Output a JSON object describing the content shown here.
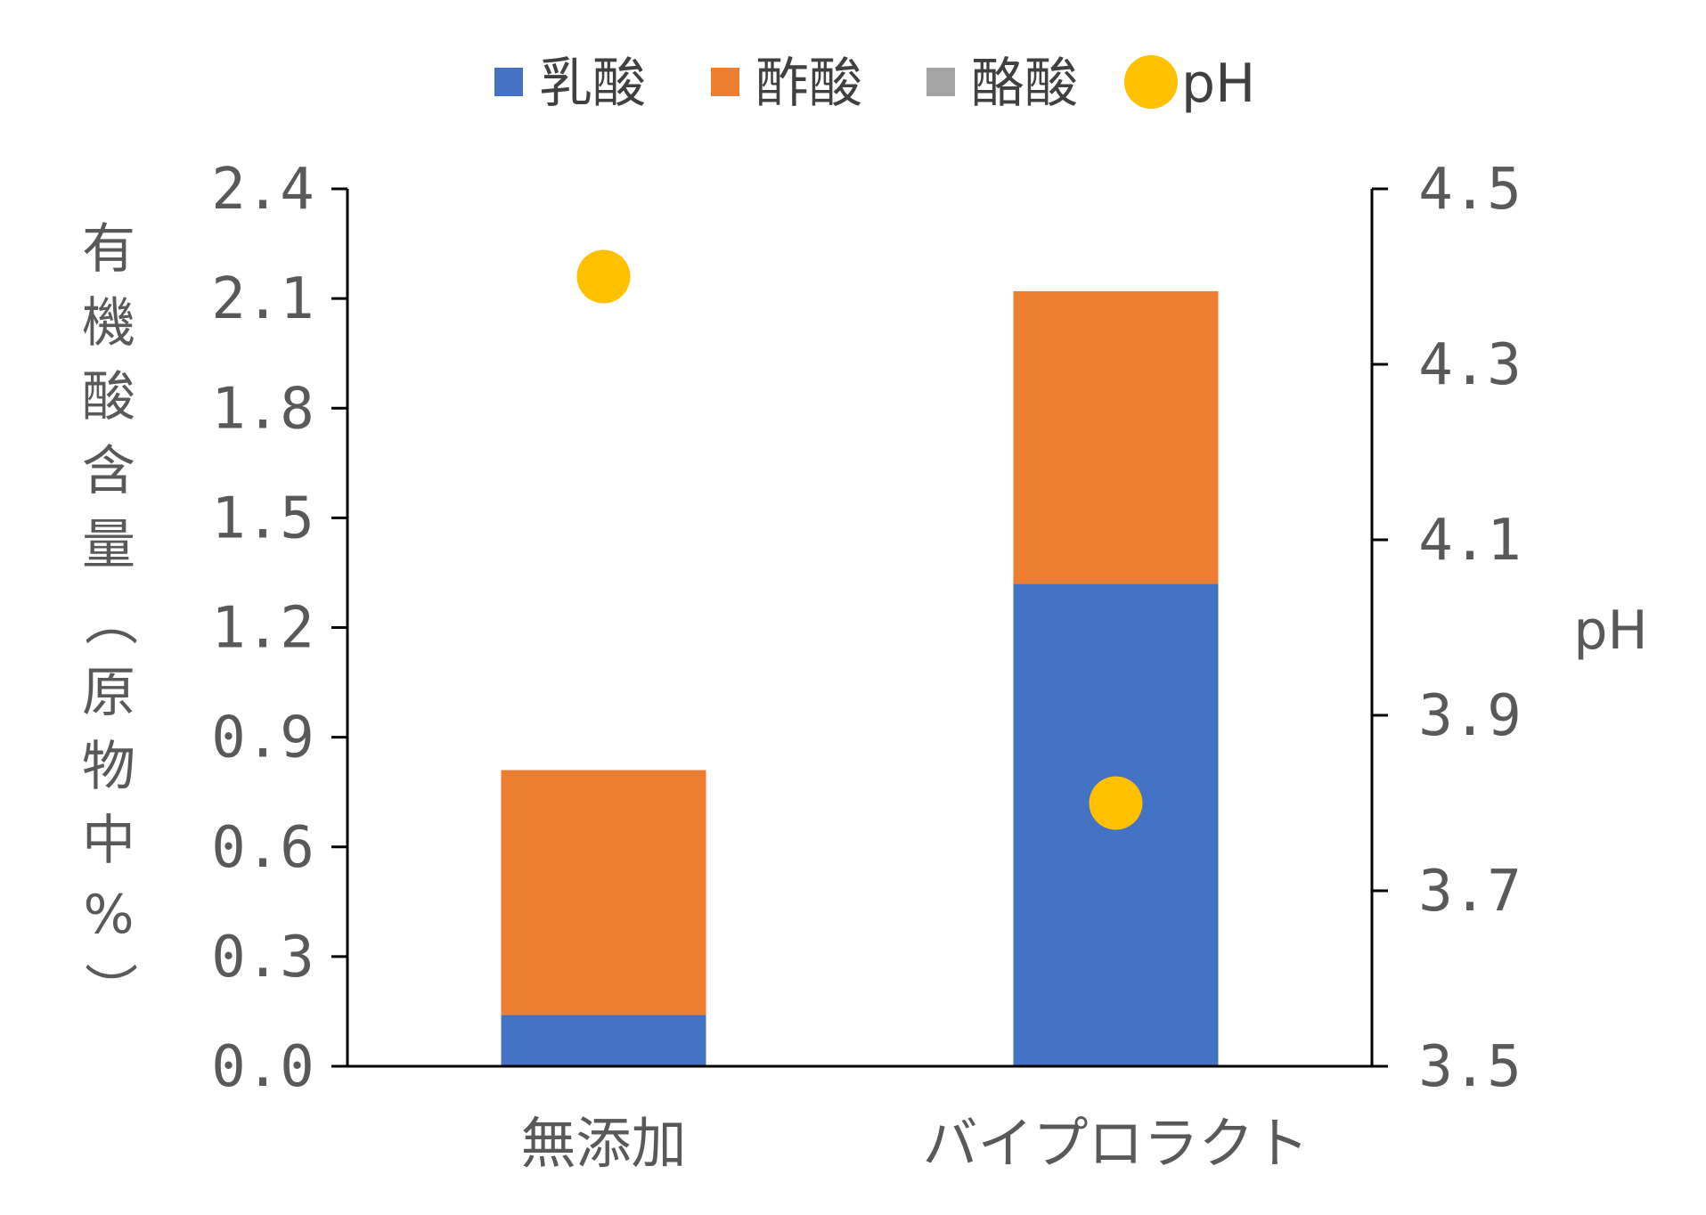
{
  "chart_data": {
    "type": "bar",
    "stacked": true,
    "categories": [
      "無添加",
      "バイプロラクト"
    ],
    "series": [
      {
        "name": "乳酸",
        "values": [
          0.14,
          1.32
        ],
        "color": "#4472C4"
      },
      {
        "name": "酢酸",
        "values": [
          0.67,
          0.8
        ],
        "color": "#ED7D31"
      },
      {
        "name": "酪酸",
        "values": [
          0.0,
          0.0
        ],
        "color": "#A5A5A5"
      }
    ],
    "secondary_series": {
      "name": "pH",
      "type": "scatter",
      "values": [
        4.4,
        3.8
      ],
      "color": "#FFC000"
    },
    "ylabel": "有機酸含量（原物中%）",
    "ylim": [
      0,
      2.4
    ],
    "yticks": [
      "0.0",
      "0.3",
      "0.6",
      "0.9",
      "1.2",
      "1.5",
      "1.8",
      "2.1",
      "2.4"
    ],
    "y2label": "pH",
    "y2lim": [
      3.5,
      4.5
    ],
    "y2ticks": [
      "3.5",
      "3.7",
      "3.9",
      "4.1",
      "4.3",
      "4.5"
    ],
    "legend_position": "top",
    "grid": false
  }
}
